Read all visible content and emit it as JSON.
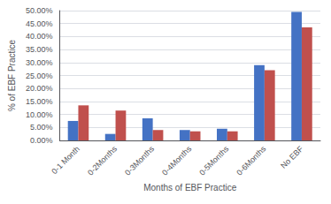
{
  "chart_data": {
    "type": "bar",
    "xlabel": "Months of EBF Practice",
    "ylabel": "% of EBF Practice",
    "categories": [
      "0-1 Month",
      "0-2Months",
      "0-3Months",
      "0-4Months",
      "0-5Months",
      "0-6Months",
      "No EBF"
    ],
    "series": [
      {
        "color": "#4472C4",
        "values": [
          7.5,
          2.5,
          8.5,
          4.0,
          4.5,
          29.0,
          49.5
        ]
      },
      {
        "color": "#C0504D",
        "values": [
          13.5,
          11.5,
          4.0,
          3.5,
          3.5,
          27.0,
          43.5
        ]
      }
    ],
    "ylim": [
      0,
      50
    ],
    "yticks": [
      {
        "value": 0,
        "label": "0.00%"
      },
      {
        "value": 5,
        "label": "5.00%"
      },
      {
        "value": 10,
        "label": "10.00%"
      },
      {
        "value": 15,
        "label": "15.00%"
      },
      {
        "value": 20,
        "label": "20.00%"
      },
      {
        "value": 25,
        "label": "25.00%"
      },
      {
        "value": 30,
        "label": "30.00%"
      },
      {
        "value": 35,
        "label": "35.00%"
      },
      {
        "value": 40,
        "label": "40.00%"
      },
      {
        "value": 45,
        "label": "45.00%"
      },
      {
        "value": 50,
        "label": "50.00%"
      }
    ],
    "grid": true
  }
}
